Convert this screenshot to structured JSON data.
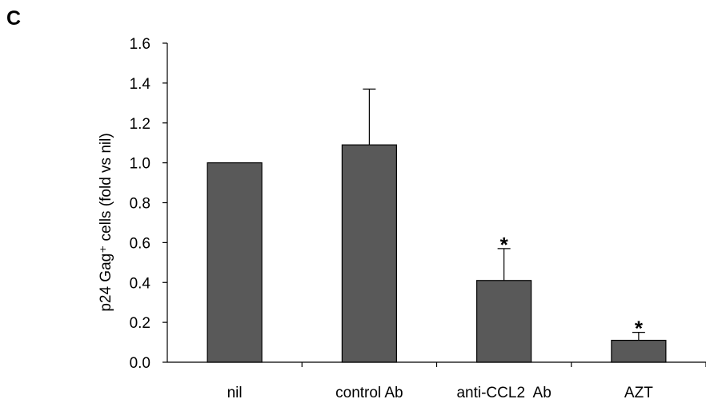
{
  "panel_label": "C",
  "chart_data": {
    "type": "bar",
    "title": "",
    "xlabel": "",
    "ylabel": "p24 Gag⁺ cells (fold vs nil)",
    "ylim": [
      0,
      1.6
    ],
    "yticks": [
      "0.0",
      "0.2",
      "0.4",
      "0.6",
      "0.8",
      "1.0",
      "1.2",
      "1.4",
      "1.6"
    ],
    "categories": [
      "nil",
      "control Ab",
      "anti-CCL2  Ab",
      "AZT"
    ],
    "values": [
      1.0,
      1.09,
      0.41,
      0.11
    ],
    "errors": [
      0,
      0.28,
      0.16,
      0.04
    ],
    "significance": [
      "",
      "",
      "*",
      "*"
    ],
    "bar_color": "#595959",
    "grid": false
  }
}
